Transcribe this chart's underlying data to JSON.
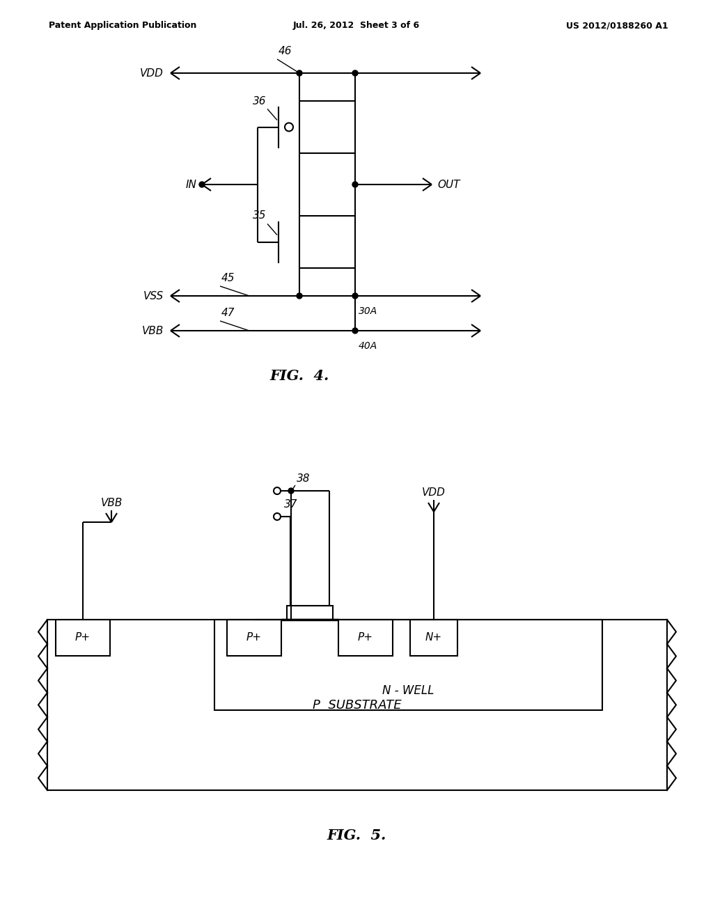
{
  "bg_color": "#ffffff",
  "line_color": "#000000",
  "header_left": "Patent Application Publication",
  "header_center": "Jul. 26, 2012  Sheet 3 of 6",
  "header_right": "US 2012/0188260 A1",
  "fig4_title": "FIG.  4.",
  "fig5_title": "FIG.  5.",
  "fig4": {
    "vdd_label": "VDD",
    "vss_label": "VSS",
    "vbb_label": "VBB",
    "in_label": "IN",
    "out_label": "OUT",
    "label_46": "46",
    "label_36": "36",
    "label_35": "35",
    "label_45": "45",
    "label_30A": "30A",
    "label_47": "47",
    "label_40A": "40A"
  },
  "fig5": {
    "label_38": "38",
    "label_37": "37",
    "vdd_label": "VDD",
    "vbb_label": "VBB",
    "nwell_label": "N - WELL",
    "psub_label": "P  SUBSTRATE",
    "pp1_label": "P+",
    "pp2_label": "P+",
    "pp3_label": "P+",
    "np_label": "N+"
  }
}
